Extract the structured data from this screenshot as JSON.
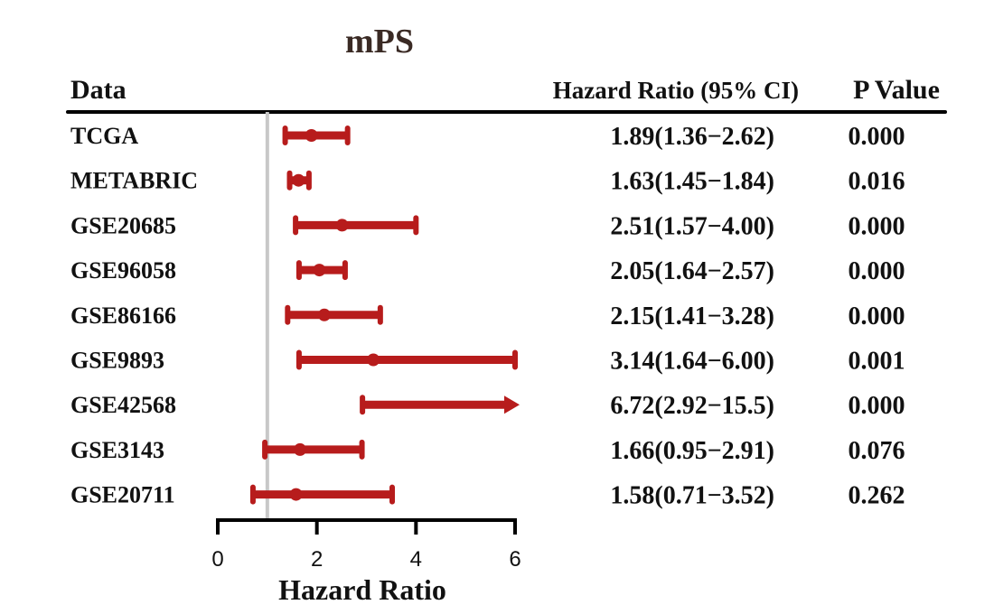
{
  "chart_data": {
    "type": "forest",
    "title": "mPS",
    "columns": {
      "study": "Data",
      "hr": "Hazard Ratio (95% CI)",
      "p": "P Value"
    },
    "xlabel": "Hazard Ratio",
    "xlim": [
      0,
      6
    ],
    "xticks": [
      "0",
      "2",
      "4",
      "6"
    ],
    "reference_line": 1,
    "colors": {
      "ci": "#b71c1c",
      "reference": "#c8c8c8",
      "text": "#111111",
      "title": "#3a2a24"
    },
    "rows": [
      {
        "study": "TCGA",
        "hr": 1.89,
        "lower": 1.36,
        "upper": 2.62,
        "hr_text": "1.89(1.36−2.62)",
        "p": "0.000",
        "arrow": false
      },
      {
        "study": "METABRIC",
        "hr": 1.63,
        "lower": 1.45,
        "upper": 1.84,
        "hr_text": "1.63(1.45−1.84)",
        "p": "0.016",
        "arrow": false
      },
      {
        "study": "GSE20685",
        "hr": 2.51,
        "lower": 1.57,
        "upper": 4.0,
        "hr_text": "2.51(1.57−4.00)",
        "p": "0.000",
        "arrow": false
      },
      {
        "study": "GSE96058",
        "hr": 2.05,
        "lower": 1.64,
        "upper": 2.57,
        "hr_text": "2.05(1.64−2.57)",
        "p": "0.000",
        "arrow": false
      },
      {
        "study": "GSE86166",
        "hr": 2.15,
        "lower": 1.41,
        "upper": 3.28,
        "hr_text": "2.15(1.41−3.28)",
        "p": "0.000",
        "arrow": false
      },
      {
        "study": "GSE9893",
        "hr": 3.14,
        "lower": 1.64,
        "upper": 6.0,
        "hr_text": "3.14(1.64−6.00)",
        "p": "0.001",
        "arrow": false
      },
      {
        "study": "GSE42568",
        "hr": 6.72,
        "lower": 2.92,
        "upper": 15.5,
        "hr_text": "6.72(2.92−15.5)",
        "p": "0.000",
        "arrow": true
      },
      {
        "study": "GSE3143",
        "hr": 1.66,
        "lower": 0.95,
        "upper": 2.91,
        "hr_text": "1.66(0.95−2.91)",
        "p": "0.076",
        "arrow": false
      },
      {
        "study": "GSE20711",
        "hr": 1.58,
        "lower": 0.71,
        "upper": 3.52,
        "hr_text": "1.58(0.71−3.52)",
        "p": "0.262",
        "arrow": false
      }
    ]
  }
}
